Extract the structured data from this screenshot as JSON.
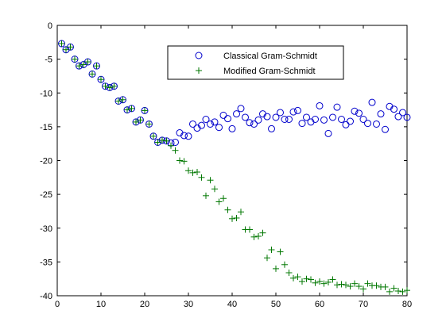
{
  "chart_data": {
    "type": "scatter",
    "xlim": [
      0,
      80
    ],
    "ylim": [
      -40,
      0
    ],
    "x_ticks": [
      "0",
      "10",
      "20",
      "30",
      "40",
      "50",
      "60",
      "70",
      "80"
    ],
    "y_ticks": [
      "0",
      "-5",
      "-10",
      "-15",
      "-20",
      "-25",
      "-30",
      "-35",
      "-40"
    ],
    "grid": false,
    "legend_position": "top-right",
    "series": [
      {
        "name": "Classical Gram-Schmidt",
        "marker": "circle",
        "color": "#0000cc",
        "points": [
          [
            1,
            -2.7
          ],
          [
            2,
            -3.6
          ],
          [
            3,
            -3.2
          ],
          [
            4,
            -5.0
          ],
          [
            5,
            -6.0
          ],
          [
            6,
            -5.8
          ],
          [
            7,
            -5.4
          ],
          [
            8,
            -7.2
          ],
          [
            9,
            -6.0
          ],
          [
            10,
            -8.0
          ],
          [
            11,
            -9.0
          ],
          [
            12,
            -9.2
          ],
          [
            13,
            -9.0
          ],
          [
            14,
            -11.2
          ],
          [
            15,
            -11.0
          ],
          [
            16,
            -12.5
          ],
          [
            17,
            -12.3
          ],
          [
            18,
            -14.3
          ],
          [
            19,
            -14.0
          ],
          [
            20,
            -12.6
          ],
          [
            21,
            -14.6
          ],
          [
            22,
            -16.4
          ],
          [
            23,
            -17.3
          ],
          [
            24,
            -17.0
          ],
          [
            25,
            -17.1
          ],
          [
            26,
            -17.4
          ],
          [
            27,
            -17.3
          ],
          [
            28,
            -15.9
          ],
          [
            29,
            -16.3
          ],
          [
            30,
            -16.4
          ],
          [
            31,
            -14.6
          ],
          [
            32,
            -15.2
          ],
          [
            33,
            -14.8
          ],
          [
            34,
            -13.9
          ],
          [
            35,
            -14.6
          ],
          [
            36,
            -14.3
          ],
          [
            37,
            -15.1
          ],
          [
            38,
            -13.3
          ],
          [
            39,
            -13.8
          ],
          [
            40,
            -15.3
          ],
          [
            41,
            -13.1
          ],
          [
            42,
            -12.3
          ],
          [
            43,
            -13.6
          ],
          [
            44,
            -14.4
          ],
          [
            45,
            -14.6
          ],
          [
            46,
            -14.0
          ],
          [
            47,
            -13.1
          ],
          [
            48,
            -13.5
          ],
          [
            49,
            -15.3
          ],
          [
            50,
            -13.6
          ],
          [
            51,
            -12.9
          ],
          [
            52,
            -13.9
          ],
          [
            53,
            -13.9
          ],
          [
            54,
            -12.8
          ],
          [
            55,
            -12.6
          ],
          [
            56,
            -14.5
          ],
          [
            57,
            -13.6
          ],
          [
            58,
            -14.3
          ],
          [
            59,
            -13.9
          ],
          [
            60,
            -11.9
          ],
          [
            61,
            -14.0
          ],
          [
            62,
            -16.0
          ],
          [
            63,
            -13.6
          ],
          [
            64,
            -12.1
          ],
          [
            65,
            -13.9
          ],
          [
            66,
            -14.7
          ],
          [
            67,
            -14.2
          ],
          [
            68,
            -12.7
          ],
          [
            69,
            -13.0
          ],
          [
            70,
            -13.9
          ],
          [
            71,
            -14.5
          ],
          [
            72,
            -11.4
          ],
          [
            73,
            -14.6
          ],
          [
            74,
            -13.1
          ],
          [
            75,
            -15.4
          ],
          [
            76,
            -12.0
          ],
          [
            77,
            -12.4
          ],
          [
            78,
            -13.5
          ],
          [
            79,
            -12.9
          ],
          [
            80,
            -13.6
          ]
        ]
      },
      {
        "name": "Modified Gram-Schmidt",
        "marker": "plus",
        "color": "#007700",
        "points": [
          [
            1,
            -2.7
          ],
          [
            2,
            -3.6
          ],
          [
            3,
            -3.2
          ],
          [
            4,
            -5.0
          ],
          [
            5,
            -6.0
          ],
          [
            6,
            -5.8
          ],
          [
            7,
            -5.4
          ],
          [
            8,
            -7.2
          ],
          [
            9,
            -6.0
          ],
          [
            10,
            -8.0
          ],
          [
            11,
            -9.0
          ],
          [
            12,
            -9.2
          ],
          [
            13,
            -9.0
          ],
          [
            14,
            -11.2
          ],
          [
            15,
            -11.0
          ],
          [
            16,
            -12.5
          ],
          [
            17,
            -12.3
          ],
          [
            18,
            -14.3
          ],
          [
            19,
            -14.0
          ],
          [
            20,
            -12.6
          ],
          [
            21,
            -14.6
          ],
          [
            22,
            -16.4
          ],
          [
            23,
            -17.3
          ],
          [
            24,
            -17.0
          ],
          [
            25,
            -17.1
          ],
          [
            26,
            -17.8
          ],
          [
            27,
            -18.5
          ],
          [
            28,
            -20.0
          ],
          [
            29,
            -20.1
          ],
          [
            30,
            -21.5
          ],
          [
            31,
            -21.8
          ],
          [
            32,
            -21.7
          ],
          [
            33,
            -22.5
          ],
          [
            34,
            -25.2
          ],
          [
            35,
            -22.9
          ],
          [
            36,
            -24.2
          ],
          [
            37,
            -26.1
          ],
          [
            38,
            -25.6
          ],
          [
            39,
            -27.3
          ],
          [
            40,
            -28.6
          ],
          [
            41,
            -28.5
          ],
          [
            42,
            -27.6
          ],
          [
            43,
            -30.2
          ],
          [
            44,
            -30.2
          ],
          [
            45,
            -31.3
          ],
          [
            46,
            -31.2
          ],
          [
            47,
            -30.7
          ],
          [
            48,
            -34.4
          ],
          [
            49,
            -33.2
          ],
          [
            50,
            -36.0
          ],
          [
            51,
            -33.5
          ],
          [
            52,
            -35.4
          ],
          [
            53,
            -36.6
          ],
          [
            54,
            -37.4
          ],
          [
            55,
            -37.2
          ],
          [
            56,
            -37.9
          ],
          [
            57,
            -37.5
          ],
          [
            58,
            -37.6
          ],
          [
            59,
            -38.1
          ],
          [
            60,
            -37.9
          ],
          [
            61,
            -38.2
          ],
          [
            62,
            -38.0
          ],
          [
            63,
            -37.6
          ],
          [
            64,
            -38.4
          ],
          [
            65,
            -38.3
          ],
          [
            66,
            -38.4
          ],
          [
            67,
            -38.6
          ],
          [
            68,
            -38.2
          ],
          [
            69,
            -38.6
          ],
          [
            70,
            -39.0
          ],
          [
            71,
            -38.2
          ],
          [
            72,
            -38.5
          ],
          [
            73,
            -38.5
          ],
          [
            74,
            -38.7
          ],
          [
            75,
            -38.7
          ],
          [
            76,
            -39.4
          ],
          [
            77,
            -38.9
          ],
          [
            78,
            -39.3
          ],
          [
            79,
            -39.4
          ],
          [
            80,
            -39.2
          ]
        ]
      }
    ]
  }
}
